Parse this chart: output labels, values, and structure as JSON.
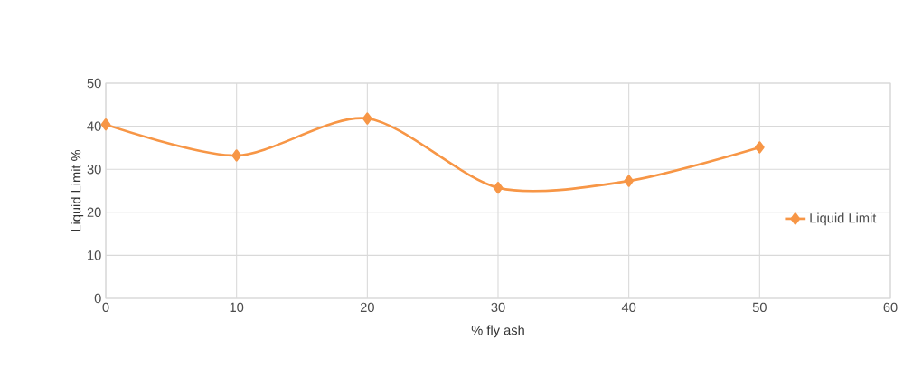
{
  "chart_data": {
    "type": "line",
    "xlabel": "% fly ash",
    "ylabel": "Liquid Limit %",
    "x": [
      0,
      10,
      20,
      30,
      40,
      50
    ],
    "series": [
      {
        "name": "Liquid Limit",
        "color": "#f79646",
        "values": [
          40.4,
          33.2,
          41.8,
          25.7,
          27.3,
          35.1
        ]
      }
    ],
    "xlim": [
      0,
      60
    ],
    "ylim": [
      0,
      50
    ],
    "xticks": [
      0,
      10,
      20,
      30,
      40,
      50,
      60
    ],
    "yticks": [
      0,
      10,
      20,
      30,
      40,
      50
    ],
    "grid": true,
    "legend": "right",
    "marker": "diamond",
    "line_style": "solid"
  }
}
